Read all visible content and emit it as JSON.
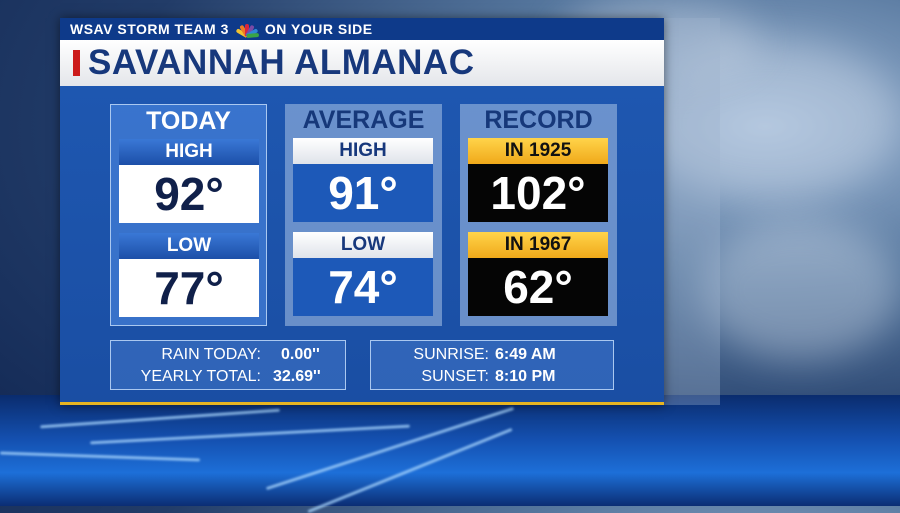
{
  "topbar": {
    "station": "WSAV STORM TEAM 3",
    "tagline": "ON YOUR SIDE"
  },
  "title": "SAVANNAH ALMANAC",
  "columns": [
    {
      "heading": "TODAY",
      "cells": [
        {
          "label": "HIGH",
          "value": "92°"
        },
        {
          "label": "LOW",
          "value": "77°"
        }
      ]
    },
    {
      "heading": "AVERAGE",
      "cells": [
        {
          "label": "HIGH",
          "value": "91°"
        },
        {
          "label": "LOW",
          "value": "74°"
        }
      ]
    },
    {
      "heading": "RECORD",
      "cells": [
        {
          "label": "IN 1925",
          "value": "102°"
        },
        {
          "label": "IN 1967",
          "value": "62°"
        }
      ]
    }
  ],
  "rain": {
    "today_label": "RAIN TODAY:",
    "today_value": "0.00''",
    "yearly_label": "YEARLY TOTAL:",
    "yearly_value": "32.69''"
  },
  "sun": {
    "sunrise_label": "SUNRISE:",
    "sunrise_value": "6:49 AM",
    "sunset_label": "SUNSET:",
    "sunset_value": "8:10 PM"
  },
  "colors": {
    "accent_red": "#cc1b1b",
    "title_blue": "#17387c",
    "record_gold": "#f0a91a",
    "panel_blue": "#1f59b3"
  },
  "icons": {
    "network_logo": "peacock-icon"
  }
}
